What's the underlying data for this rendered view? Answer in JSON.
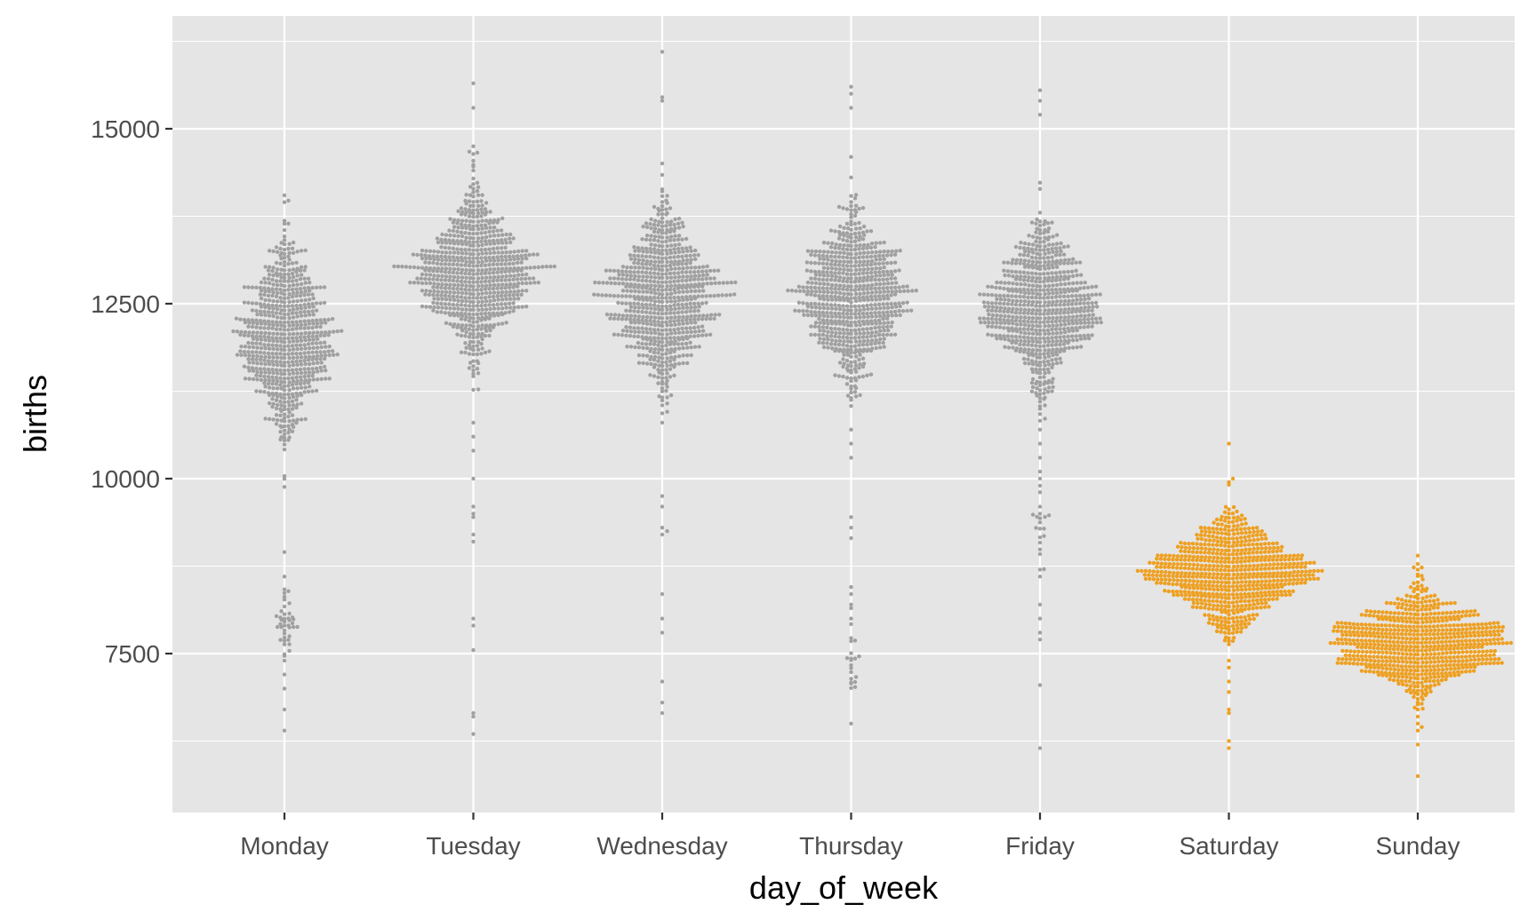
{
  "chart_data": {
    "type": "beeswarm",
    "xlabel": "day_of_week",
    "ylabel": "births",
    "ylim": [
      5400,
      16600
    ],
    "yticks": [
      7500,
      10000,
      12500,
      15000
    ],
    "ytick_labels": [
      "7500",
      "10000",
      "12500",
      "15000"
    ],
    "y_minor_ticks": [
      6250,
      8750,
      11250,
      13750,
      16250
    ],
    "grid": true,
    "legend": "none",
    "colors": {
      "panel": "#e5e5e5",
      "grid": "#ffffff",
      "weekday": "#a0a0a0",
      "weekend": "#eea021"
    },
    "categories": [
      "Monday",
      "Tuesday",
      "Wednesday",
      "Thursday",
      "Friday",
      "Saturday",
      "Sunday"
    ],
    "series": [
      {
        "day": "Monday",
        "group": "weekday",
        "n": 730,
        "bulk_center": 11950,
        "bulk_spread": 650,
        "bulk_min": 9800,
        "bulk_max": 14000,
        "low_cluster_center": 8000,
        "low_cluster_spread": 250,
        "low_cluster_n": 40,
        "outliers": [
          8950,
          8600,
          7400,
          7200,
          7000,
          6700,
          6400,
          14050,
          13950
        ]
      },
      {
        "day": "Tuesday",
        "group": "weekday",
        "n": 730,
        "bulk_center": 12900,
        "bulk_spread": 560,
        "bulk_min": 10900,
        "bulk_max": 15200,
        "outliers": [
          15650,
          15300,
          10800,
          10600,
          10400,
          10000,
          9600,
          9500,
          9450,
          9200,
          9100,
          8000,
          7900,
          7550,
          6650,
          6600,
          6350
        ]
      },
      {
        "day": "Wednesday",
        "group": "weekday",
        "n": 730,
        "bulk_center": 12650,
        "bulk_spread": 600,
        "bulk_min": 10700,
        "bulk_max": 15000,
        "outliers": [
          16100,
          15450,
          15400,
          10800,
          9750,
          9600,
          9300,
          9250,
          9200,
          8350,
          8000,
          7800,
          7100,
          6800,
          6650
        ]
      },
      {
        "day": "Thursday",
        "group": "weekday",
        "n": 730,
        "bulk_center": 12600,
        "bulk_spread": 600,
        "bulk_min": 10900,
        "bulk_max": 15200,
        "low_cluster_center": 7300,
        "low_cluster_spread": 250,
        "low_cluster_n": 20,
        "outliers": [
          15600,
          15500,
          15300,
          10700,
          10500,
          10300,
          9450,
          9300,
          9150,
          8450,
          8350,
          8200,
          8150,
          8000,
          6500
        ]
      },
      {
        "day": "Friday",
        "group": "weekday",
        "n": 730,
        "bulk_center": 12450,
        "bulk_spread": 600,
        "bulk_min": 10800,
        "bulk_max": 15000,
        "low_cluster_center": 9300,
        "low_cluster_spread": 200,
        "low_cluster_n": 18,
        "outliers": [
          15550,
          15400,
          15200,
          10700,
          10500,
          10300,
          10100,
          10000,
          9900,
          8700,
          8600,
          8200,
          8000,
          7800,
          7700,
          7050,
          6150
        ]
      },
      {
        "day": "Saturday",
        "group": "weekend",
        "n": 730,
        "bulk_center": 8650,
        "bulk_spread": 380,
        "bulk_min": 7500,
        "bulk_max": 9950,
        "outliers": [
          10500,
          10000,
          9950,
          7400,
          7300,
          7100,
          6950,
          6700,
          6650,
          6250,
          6150
        ]
      },
      {
        "day": "Sunday",
        "group": "weekend",
        "n": 730,
        "bulk_center": 7650,
        "bulk_spread": 370,
        "bulk_min": 6700,
        "bulk_max": 8900,
        "outliers": [
          8900,
          6600,
          6500,
          6450,
          6400,
          6200,
          5750
        ]
      }
    ]
  }
}
